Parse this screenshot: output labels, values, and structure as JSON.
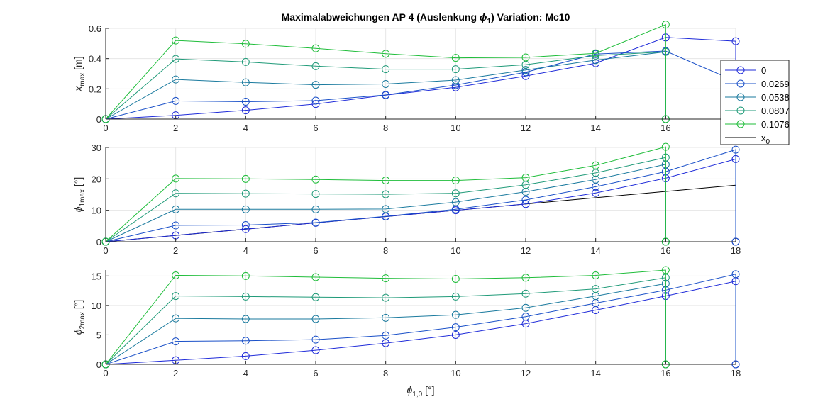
{
  "chart_data": {
    "type": "line",
    "title": "Maximalabweichungen AP 4 (Auslenkung ϕ₁)  Variation: Mc10",
    "title_parts": [
      "Maximalabweichungen AP 4 (Auslenkung ",
      "ϕ",
      "1",
      ")  Variation: Mc10"
    ],
    "xlabel": {
      "sym": "ϕ",
      "sub": "1,0",
      "unit": " [°]"
    },
    "xlim": [
      0,
      18
    ],
    "xticks": [
      0,
      2,
      4,
      6,
      8,
      10,
      12,
      14,
      16,
      18
    ],
    "legend": {
      "placement": "right",
      "entries": [
        {
          "label": "0",
          "color": "#1f2bd9",
          "marker": "o"
        },
        {
          "label": "0.0269",
          "color": "#1a50c8",
          "marker": "o"
        },
        {
          "label": "0.0538",
          "color": "#1a7a9e",
          "marker": "o"
        },
        {
          "label": "0.0807",
          "color": "#1f9a78",
          "marker": "o"
        },
        {
          "label": "0.1076",
          "color": "#1fbd3a",
          "marker": "o"
        },
        {
          "label": "x",
          "label_sub": "0",
          "color": "#000000",
          "marker": "none"
        }
      ]
    },
    "subplots": [
      {
        "ylabel": {
          "sym": "x",
          "sub": "max",
          "unit": " [m]"
        },
        "ylim": [
          0,
          0.6
        ],
        "yticks": [
          0,
          0.2,
          0.4,
          0.6
        ],
        "ytick_labels": [
          "0",
          "0.2",
          "0.4",
          "0.6"
        ],
        "reference": {
          "x": [
            0,
            18
          ],
          "y": [
            0,
            0
          ]
        },
        "series": [
          {
            "name": "0",
            "x": [
              0,
              2,
              4,
              6,
              8,
              10,
              12,
              14,
              16,
              18,
              18
            ],
            "y": [
              0,
              0.025,
              0.058,
              0.1,
              0.158,
              0.21,
              0.285,
              0.37,
              0.54,
              0.515,
              0
            ]
          },
          {
            "name": "0.0269",
            "x": [
              0,
              2,
              4,
              6,
              8,
              10,
              12,
              14,
              16,
              18,
              18
            ],
            "y": [
              0,
              0.12,
              0.115,
              0.122,
              0.16,
              0.225,
              0.31,
              0.43,
              0.45,
              0.25,
              0
            ]
          },
          {
            "name": "0.0538",
            "x": [
              0,
              2,
              4,
              6,
              8,
              10,
              12,
              14,
              16,
              16
            ],
            "y": [
              0,
              0.262,
              0.243,
              0.227,
              0.232,
              0.258,
              0.325,
              0.39,
              0.445,
              0
            ]
          },
          {
            "name": "0.0807",
            "x": [
              0,
              2,
              4,
              6,
              8,
              10,
              12,
              14,
              16,
              16
            ],
            "y": [
              0,
              0.398,
              0.378,
              0.35,
              0.33,
              0.33,
              0.36,
              0.42,
              0.445,
              0
            ]
          },
          {
            "name": "0.1076",
            "x": [
              0,
              2,
              4,
              6,
              8,
              10,
              12,
              14,
              16,
              16
            ],
            "y": [
              0,
              0.52,
              0.498,
              0.468,
              0.432,
              0.405,
              0.408,
              0.435,
              0.625,
              0
            ]
          }
        ]
      },
      {
        "ylabel": {
          "sym": "ϕ",
          "sub": "1max",
          "unit": " [°]"
        },
        "ylim": [
          0,
          30
        ],
        "yticks": [
          0,
          10,
          20,
          30
        ],
        "ytick_labels": [
          "0",
          "10",
          "20",
          "30"
        ],
        "reference": {
          "x": [
            0,
            18
          ],
          "y": [
            0,
            18
          ]
        },
        "series": [
          {
            "name": "0",
            "x": [
              0,
              2,
              4,
              6,
              8,
              10,
              12,
              14,
              16,
              18,
              18
            ],
            "y": [
              0,
              2,
              4,
              6,
              8,
              10,
              12,
              15.5,
              20.2,
              26.3,
              0
            ]
          },
          {
            "name": "0.0269",
            "x": [
              0,
              2,
              4,
              6,
              8,
              10,
              12,
              14,
              16,
              18,
              18
            ],
            "y": [
              0,
              5.2,
              5.3,
              6.1,
              8.1,
              10.3,
              13.3,
              17.5,
              22.3,
              29.3,
              0
            ]
          },
          {
            "name": "0.0538",
            "x": [
              0,
              2,
              4,
              6,
              8,
              10,
              12,
              14,
              16,
              16
            ],
            "y": [
              0,
              10.3,
              10.3,
              10.3,
              10.4,
              12.6,
              15.9,
              19.8,
              24.6,
              0
            ]
          },
          {
            "name": "0.0807",
            "x": [
              0,
              2,
              4,
              6,
              8,
              10,
              12,
              14,
              16,
              16
            ],
            "y": [
              0,
              15.4,
              15.3,
              15.2,
              15.1,
              15.4,
              18.1,
              21.9,
              26.8,
              0
            ]
          },
          {
            "name": "0.1076",
            "x": [
              0,
              2,
              4,
              6,
              8,
              10,
              12,
              14,
              16,
              16
            ],
            "y": [
              0,
              20.1,
              20.0,
              19.8,
              19.5,
              19.5,
              20.4,
              24.3,
              30.2,
              0
            ]
          }
        ]
      },
      {
        "ylabel": {
          "sym": "ϕ",
          "sub": "2max",
          "unit": " [°]"
        },
        "ylim": [
          0,
          16
        ],
        "yticks": [
          0,
          5,
          10,
          15
        ],
        "ytick_labels": [
          "0",
          "5",
          "10",
          "15"
        ],
        "reference": null,
        "series": [
          {
            "name": "0",
            "x": [
              0,
              2,
              4,
              6,
              8,
              10,
              12,
              14,
              16,
              18,
              18
            ],
            "y": [
              0,
              0.7,
              1.4,
              2.4,
              3.6,
              5.0,
              6.9,
              9.2,
              11.6,
              14.1,
              0
            ]
          },
          {
            "name": "0.0269",
            "x": [
              0,
              2,
              4,
              6,
              8,
              10,
              12,
              14,
              16,
              18,
              18
            ],
            "y": [
              0,
              3.9,
              4.0,
              4.2,
              4.9,
              6.3,
              8.1,
              10.4,
              12.6,
              15.3,
              0
            ]
          },
          {
            "name": "0.0538",
            "x": [
              0,
              2,
              4,
              6,
              8,
              10,
              12,
              14,
              16,
              16
            ],
            "y": [
              0,
              7.8,
              7.7,
              7.7,
              7.9,
              8.4,
              9.6,
              11.6,
              13.7,
              0
            ]
          },
          {
            "name": "0.0807",
            "x": [
              0,
              2,
              4,
              6,
              8,
              10,
              12,
              14,
              16,
              16
            ],
            "y": [
              0,
              11.6,
              11.5,
              11.4,
              11.3,
              11.5,
              12.0,
              12.8,
              14.7,
              0
            ]
          },
          {
            "name": "0.1076",
            "x": [
              0,
              2,
              4,
              6,
              8,
              10,
              12,
              14,
              16,
              16
            ],
            "y": [
              0,
              15.1,
              15.0,
              14.8,
              14.6,
              14.5,
              14.7,
              15.1,
              16.0,
              0
            ]
          }
        ]
      }
    ]
  }
}
